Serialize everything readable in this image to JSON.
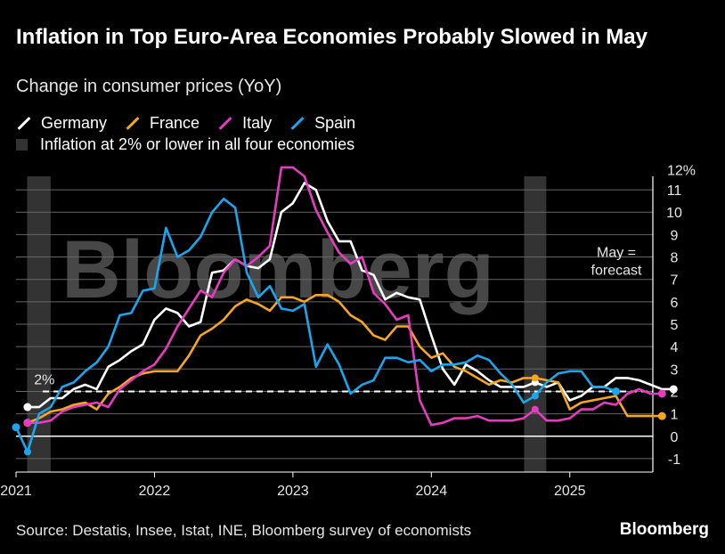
{
  "title": "Inflation in Top Euro-Area Economies Probably Slowed in May",
  "subtitle": "Change in consumer prices (YoY)",
  "legend": {
    "germany": "Germany",
    "france": "France",
    "italy": "Italy",
    "spain": "Spain",
    "shading": "Inflation at 2% or lower in all four economies"
  },
  "source": "Source: Destatis, Insee, Istat, INE, Bloomberg survey of economists",
  "brand": "Bloomberg",
  "watermark": "Bloomberg",
  "colors": {
    "germany": "#ffffff",
    "france": "#f5a623",
    "italy": "#e83cc0",
    "spain": "#1aa6ee",
    "shading": "#333333",
    "grid": "#666666"
  },
  "chart_data": {
    "type": "line",
    "title": "Inflation in Top Euro-Area Economies Probably Slowed in May",
    "ylabel": "Change in consumer prices (YoY)",
    "y_unit_label": "12%",
    "ylim": [
      -1,
      12
    ],
    "xlim": [
      2021.0,
      2025.6
    ],
    "xticks": [
      2021,
      2022,
      2023,
      2024,
      2025
    ],
    "xtick_labels": [
      "2021",
      "2022",
      "2023",
      "2024",
      "2025"
    ],
    "yticks": [
      -1,
      0,
      1,
      2,
      3,
      4,
      5,
      6,
      7,
      8,
      9,
      10,
      11,
      12
    ],
    "ytick_labels": [
      "-1",
      "0",
      "1",
      "2",
      "3",
      "4",
      "5",
      "6",
      "7",
      "8",
      "9",
      "10",
      "11",
      "12%"
    ],
    "reference_line": {
      "y": 2,
      "label": "2%"
    },
    "annotation": "May =\nforecast",
    "shaded_periods": [
      [
        2021.08,
        2021.25
      ],
      [
        2024.67,
        2024.83
      ]
    ],
    "series": [
      {
        "name": "Germany",
        "start": 2021.083,
        "values": [
          1.3,
          1.3,
          1.7,
          1.7,
          2.1,
          2.3,
          2.1,
          3.1,
          3.4,
          3.8,
          4.1,
          5.2,
          5.7,
          5.5,
          4.9,
          5.1,
          7.3,
          7.4,
          7.9,
          7.6,
          7.5,
          7.9,
          10.0,
          10.4,
          11.3,
          11.0,
          9.6,
          8.7,
          8.7,
          7.4,
          7.2,
          6.1,
          6.4,
          6.2,
          6.1,
          4.5,
          3.0,
          2.3,
          3.2,
          2.9,
          2.5,
          2.2,
          2.2,
          2.2,
          2.4,
          2.2,
          2.4,
          1.6,
          1.8,
          2.2,
          2.2,
          2.6,
          2.6,
          2.5,
          2.3,
          2.1,
          2.1
        ]
      },
      {
        "name": "France",
        "start": 2021.083,
        "values": [
          0.6,
          0.8,
          1.1,
          1.2,
          1.4,
          1.5,
          1.2,
          1.9,
          2.2,
          2.6,
          2.8,
          2.9,
          2.9,
          2.9,
          3.6,
          4.5,
          4.8,
          5.2,
          5.8,
          6.1,
          5.9,
          5.6,
          6.2,
          6.2,
          6.0,
          6.3,
          6.3,
          6.0,
          5.4,
          5.1,
          4.5,
          4.3,
          4.9,
          4.9,
          4.0,
          3.5,
          3.7,
          3.1,
          2.9,
          2.6,
          2.3,
          2.5,
          2.4,
          2.6,
          2.6,
          2.5,
          2.4,
          1.2,
          1.5,
          1.6,
          1.7,
          1.8,
          0.9,
          0.9,
          0.9,
          0.9
        ]
      },
      {
        "name": "Italy",
        "start": 2021.083,
        "values": [
          0.6,
          0.6,
          0.7,
          1.1,
          1.3,
          1.4,
          1.5,
          1.3,
          2.1,
          2.5,
          2.9,
          3.2,
          3.9,
          4.9,
          5.7,
          6.5,
          6.2,
          7.3,
          7.9,
          7.6,
          8.0,
          8.5,
          12.0,
          12.0,
          11.6,
          10.1,
          9.1,
          8.2,
          7.7,
          8.0,
          6.4,
          5.9,
          5.2,
          5.4,
          1.6,
          0.5,
          0.6,
          0.8,
          0.8,
          0.9,
          0.7,
          0.7,
          0.7,
          0.8,
          1.2,
          0.7,
          0.7,
          0.8,
          1.2,
          1.2,
          1.5,
          1.4,
          1.9,
          2.1,
          1.9,
          1.9
        ]
      },
      {
        "name": "Spain",
        "start": 2021.0,
        "values": [
          0.4,
          -0.7,
          1.0,
          1.3,
          2.2,
          2.4,
          2.9,
          3.3,
          4.0,
          5.4,
          5.5,
          6.5,
          6.6,
          9.3,
          8.0,
          8.3,
          8.9,
          10.0,
          10.6,
          10.2,
          7.3,
          6.2,
          6.7,
          5.7,
          5.6,
          5.9,
          3.1,
          4.1,
          3.2,
          1.9,
          2.3,
          2.5,
          3.5,
          3.5,
          3.3,
          3.4,
          2.9,
          3.2,
          3.2,
          3.3,
          3.6,
          3.4,
          2.8,
          2.3,
          1.5,
          1.8,
          2.4,
          2.8,
          2.9,
          2.9,
          2.2,
          2.2,
          2.0
        ]
      }
    ]
  }
}
